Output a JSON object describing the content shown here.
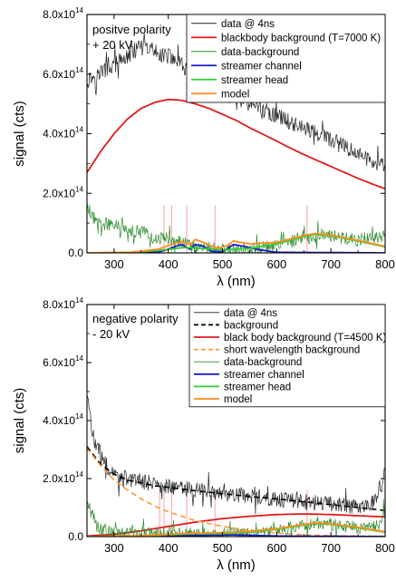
{
  "chart_data": [
    {
      "type": "line",
      "annotation": [
        "positve polarity",
        "+ 20 kV"
      ],
      "xlabel": "λ (nm)",
      "ylabel": "signal (cts)",
      "xlim": [
        250,
        800
      ],
      "ylim": [
        0,
        800000000000000.0
      ],
      "xticks": [
        300,
        400,
        500,
        600,
        700,
        800
      ],
      "yticks": [
        {
          "value": 0.0,
          "label": "0.0"
        },
        {
          "value": 200000000000000.0,
          "label": "2.0x10",
          "exp": "14"
        },
        {
          "value": 400000000000000.0,
          "label": "4.0x10",
          "exp": "14"
        },
        {
          "value": 600000000000000.0,
          "label": "6.0x10",
          "exp": "14"
        },
        {
          "value": 800000000000000.0,
          "label": "8.0x10",
          "exp": "14"
        }
      ],
      "grid": false,
      "legend_position": "top-right",
      "series": [
        {
          "name": "data @ 4ns",
          "color": "#222222",
          "style": "noisy",
          "points": [
            [
              250,
              580000000000000.0
            ],
            [
              300,
              630000000000000.0
            ],
            [
              350,
              690000000000000.0
            ],
            [
              400,
              660000000000000.0
            ],
            [
              450,
              600000000000000.0
            ],
            [
              500,
              540000000000000.0
            ],
            [
              550,
              500000000000000.0
            ],
            [
              600,
              460000000000000.0
            ],
            [
              650,
              420000000000000.0
            ],
            [
              700,
              380000000000000.0
            ],
            [
              750,
              330000000000000.0
            ],
            [
              800,
              290000000000000.0
            ]
          ]
        },
        {
          "name": "blackbody background (T=7000 K)",
          "color": "#e31a1c",
          "style": "solid",
          "points": [
            [
              250,
              270000000000000.0
            ],
            [
              275,
              340000000000000.0
            ],
            [
              300,
              400000000000000.0
            ],
            [
              325,
              450000000000000.0
            ],
            [
              350,
              485000000000000.0
            ],
            [
              375,
              505000000000000.0
            ],
            [
              400,
              515000000000000.0
            ],
            [
              425,
              512000000000000.0
            ],
            [
              450,
              500000000000000.0
            ],
            [
              475,
              485000000000000.0
            ],
            [
              500,
              465000000000000.0
            ],
            [
              525,
              445000000000000.0
            ],
            [
              550,
              420000000000000.0
            ],
            [
              575,
              398000000000000.0
            ],
            [
              600,
              375000000000000.0
            ],
            [
              625,
              352000000000000.0
            ],
            [
              650,
              330000000000000.0
            ],
            [
              675,
              310000000000000.0
            ],
            [
              700,
              290000000000000.0
            ],
            [
              725,
              270000000000000.0
            ],
            [
              750,
              250000000000000.0
            ],
            [
              775,
              232000000000000.0
            ],
            [
              800,
              215000000000000.0
            ]
          ]
        },
        {
          "name": "data-background",
          "color": "#2e8b2e",
          "style": "noisy",
          "points": [
            [
              250,
              150000000000000.0
            ],
            [
              275,
              100000000000000.0
            ],
            [
              300,
              90000000000000.0
            ],
            [
              350,
              70000000000000.0
            ],
            [
              400,
              45000000000000.0
            ],
            [
              450,
              20000000000000.0
            ],
            [
              500,
              12000000000000.0
            ],
            [
              550,
              10000000000000.0
            ],
            [
              600,
              25000000000000.0
            ],
            [
              650,
              55000000000000.0
            ],
            [
              700,
              55000000000000.0
            ],
            [
              750,
              45000000000000.0
            ],
            [
              800,
              55000000000000.0
            ]
          ]
        },
        {
          "name": "streamer channel",
          "color": "#1a1acc",
          "style": "solid",
          "points": [
            [
              250,
              0
            ],
            [
              380,
              2000000000000.0
            ],
            [
              400,
              12000000000000.0
            ],
            [
              410,
              20000000000000.0
            ],
            [
              425,
              28000000000000.0
            ],
            [
              440,
              12000000000000.0
            ],
            [
              450,
              28000000000000.0
            ],
            [
              465,
              22000000000000.0
            ],
            [
              480,
              5000000000000.0
            ],
            [
              500,
              4000000000000.0
            ],
            [
              510,
              15000000000000.0
            ],
            [
              520,
              28000000000000.0
            ],
            [
              545,
              20000000000000.0
            ],
            [
              570,
              10000000000000.0
            ],
            [
              600,
              2000000000000.0
            ],
            [
              800,
              0
            ]
          ]
        },
        {
          "name": "streamer head",
          "color": "#33cc33",
          "style": "solid",
          "points": [
            [
              250,
              0
            ],
            [
              330,
              1000000000000.0
            ],
            [
              380,
              8000000000000.0
            ],
            [
              430,
              18000000000000.0
            ],
            [
              460,
              15000000000000.0
            ],
            [
              500,
              10000000000000.0
            ],
            [
              550,
              15000000000000.0
            ],
            [
              600,
              30000000000000.0
            ],
            [
              650,
              55000000000000.0
            ],
            [
              670,
              62000000000000.0
            ],
            [
              700,
              58000000000000.0
            ],
            [
              750,
              40000000000000.0
            ],
            [
              800,
              20000000000000.0
            ]
          ]
        },
        {
          "name": "model",
          "color": "#ff8c1a",
          "style": "solid",
          "points": [
            [
              250,
              0
            ],
            [
              330,
              2000000000000.0
            ],
            [
              380,
              12000000000000.0
            ],
            [
              410,
              30000000000000.0
            ],
            [
              425,
              38000000000000.0
            ],
            [
              440,
              28000000000000.0
            ],
            [
              450,
              45000000000000.0
            ],
            [
              465,
              35000000000000.0
            ],
            [
              490,
              15000000000000.0
            ],
            [
              510,
              25000000000000.0
            ],
            [
              520,
              40000000000000.0
            ],
            [
              550,
              30000000000000.0
            ],
            [
              600,
              35000000000000.0
            ],
            [
              650,
              58000000000000.0
            ],
            [
              670,
              65000000000000.0
            ],
            [
              700,
              60000000000000.0
            ],
            [
              750,
              42000000000000.0
            ],
            [
              800,
              22000000000000.0
            ]
          ]
        }
      ],
      "marker_lines": {
        "color": "#ff8a8a",
        "x": [
          392,
          406,
          434,
          486,
          656
        ]
      }
    },
    {
      "type": "line",
      "annotation": [
        "negative polarity",
        "- 20 kV"
      ],
      "xlabel": "λ (nm)",
      "ylabel": "signal (cts)",
      "xlim": [
        250,
        800
      ],
      "ylim": [
        0,
        800000000000000.0
      ],
      "xticks": [
        300,
        400,
        500,
        600,
        700,
        800
      ],
      "yticks": [
        {
          "value": 0.0,
          "label": "0.0"
        },
        {
          "value": 200000000000000.0,
          "label": "2.0x10",
          "exp": "14"
        },
        {
          "value": 400000000000000.0,
          "label": "4.0x10",
          "exp": "14"
        },
        {
          "value": 600000000000000.0,
          "label": "6.0x10",
          "exp": "14"
        },
        {
          "value": 800000000000000.0,
          "label": "8.0x10",
          "exp": "14"
        }
      ],
      "grid": false,
      "legend_position": "top-right",
      "series": [
        {
          "name": "data @ 4ns",
          "color": "#222222",
          "style": "noisy",
          "points": [
            [
              250,
              500000000000000.0
            ],
            [
              260,
              350000000000000.0
            ],
            [
              280,
              260000000000000.0
            ],
            [
              300,
              210000000000000.0
            ],
            [
              350,
              190000000000000.0
            ],
            [
              400,
              175000000000000.0
            ],
            [
              450,
              160000000000000.0
            ],
            [
              500,
              150000000000000.0
            ],
            [
              550,
              140000000000000.0
            ],
            [
              600,
              130000000000000.0
            ],
            [
              650,
              120000000000000.0
            ],
            [
              700,
              110000000000000.0
            ],
            [
              750,
              105000000000000.0
            ],
            [
              780,
              120000000000000.0
            ],
            [
              790,
              170000000000000.0
            ],
            [
              800,
              230000000000000.0
            ]
          ]
        },
        {
          "name": "background",
          "color": "#000000",
          "style": "dash",
          "points": [
            [
              250,
              310000000000000.0
            ],
            [
              275,
              250000000000000.0
            ],
            [
              300,
              215000000000000.0
            ],
            [
              325,
              195000000000000.0
            ],
            [
              350,
              185000000000000.0
            ],
            [
              375,
              175000000000000.0
            ],
            [
              400,
              170000000000000.0
            ],
            [
              450,
              158000000000000.0
            ],
            [
              500,
              148000000000000.0
            ],
            [
              550,
              138000000000000.0
            ],
            [
              600,
              130000000000000.0
            ],
            [
              650,
              120000000000000.0
            ],
            [
              700,
              110000000000000.0
            ],
            [
              750,
              100000000000000.0
            ],
            [
              800,
              90000000000000.0
            ]
          ]
        },
        {
          "name": "black body background (T=4500 K)",
          "color": "#e31a1c",
          "style": "solid",
          "points": [
            [
              250,
              2000000000000.0
            ],
            [
              300,
              8000000000000.0
            ],
            [
              350,
              20000000000000.0
            ],
            [
              400,
              35000000000000.0
            ],
            [
              450,
              50000000000000.0
            ],
            [
              500,
              62000000000000.0
            ],
            [
              550,
              70000000000000.0
            ],
            [
              600,
              76000000000000.0
            ],
            [
              650,
              78000000000000.0
            ],
            [
              700,
              76000000000000.0
            ],
            [
              750,
              72000000000000.0
            ],
            [
              800,
              68000000000000.0
            ]
          ]
        },
        {
          "name": "short wavelength background",
          "color": "#ff9933",
          "style": "dash",
          "points": [
            [
              250,
              305000000000000.0
            ],
            [
              275,
              245000000000000.0
            ],
            [
              300,
              195000000000000.0
            ],
            [
              325,
              160000000000000.0
            ],
            [
              350,
              130000000000000.0
            ],
            [
              375,
              105000000000000.0
            ],
            [
              400,
              85000000000000.0
            ],
            [
              450,
              55000000000000.0
            ],
            [
              500,
              35000000000000.0
            ],
            [
              550,
              22000000000000.0
            ],
            [
              600,
              12000000000000.0
            ],
            [
              650,
              6000000000000.0
            ],
            [
              700,
              3000000000000.0
            ],
            [
              800,
              1000000000000.0
            ]
          ]
        },
        {
          "name": "data-background",
          "color": "#2e8b2e",
          "style": "noisy",
          "points": [
            [
              250,
              120000000000000.0
            ],
            [
              270,
              30000000000000.0
            ],
            [
              300,
              15000000000000.0
            ],
            [
              350,
              10000000000000.0
            ],
            [
              400,
              10000000000000.0
            ],
            [
              450,
              10000000000000.0
            ],
            [
              500,
              8000000000000.0
            ],
            [
              550,
              10000000000000.0
            ],
            [
              600,
              20000000000000.0
            ],
            [
              650,
              40000000000000.0
            ],
            [
              700,
              40000000000000.0
            ],
            [
              750,
              30000000000000.0
            ],
            [
              790,
              40000000000000.0
            ],
            [
              800,
              100000000000000.0
            ]
          ]
        },
        {
          "name": "streamer channel",
          "color": "#1a1acc",
          "style": "solid",
          "points": [
            [
              250,
              0
            ],
            [
              380,
              2000000000000.0
            ],
            [
              450,
              4000000000000.0
            ],
            [
              520,
              6000000000000.0
            ],
            [
              600,
              2000000000000.0
            ],
            [
              800,
              0
            ]
          ]
        },
        {
          "name": "streamer head",
          "color": "#33cc33",
          "style": "solid",
          "points": [
            [
              250,
              0
            ],
            [
              350,
              2000000000000.0
            ],
            [
              400,
              6000000000000.0
            ],
            [
              450,
              10000000000000.0
            ],
            [
              500,
              10000000000000.0
            ],
            [
              550,
              15000000000000.0
            ],
            [
              600,
              25000000000000.0
            ],
            [
              650,
              40000000000000.0
            ],
            [
              670,
              45000000000000.0
            ],
            [
              700,
              42000000000000.0
            ],
            [
              750,
              30000000000000.0
            ],
            [
              800,
              15000000000000.0
            ]
          ]
        },
        {
          "name": "model",
          "color": "#ff8c1a",
          "style": "solid",
          "points": [
            [
              250,
              0
            ],
            [
              350,
              3000000000000.0
            ],
            [
              400,
              8000000000000.0
            ],
            [
              450,
              12000000000000.0
            ],
            [
              500,
              14000000000000.0
            ],
            [
              550,
              18000000000000.0
            ],
            [
              600,
              27000000000000.0
            ],
            [
              650,
              42000000000000.0
            ],
            [
              670,
              47000000000000.0
            ],
            [
              700,
              44000000000000.0
            ],
            [
              750,
              32000000000000.0
            ],
            [
              800,
              17000000000000.0
            ]
          ]
        }
      ],
      "marker_lines": {
        "color": "#ff8a8a",
        "x": [
          384,
          392,
          406,
          434,
          486,
          656
        ]
      }
    }
  ]
}
